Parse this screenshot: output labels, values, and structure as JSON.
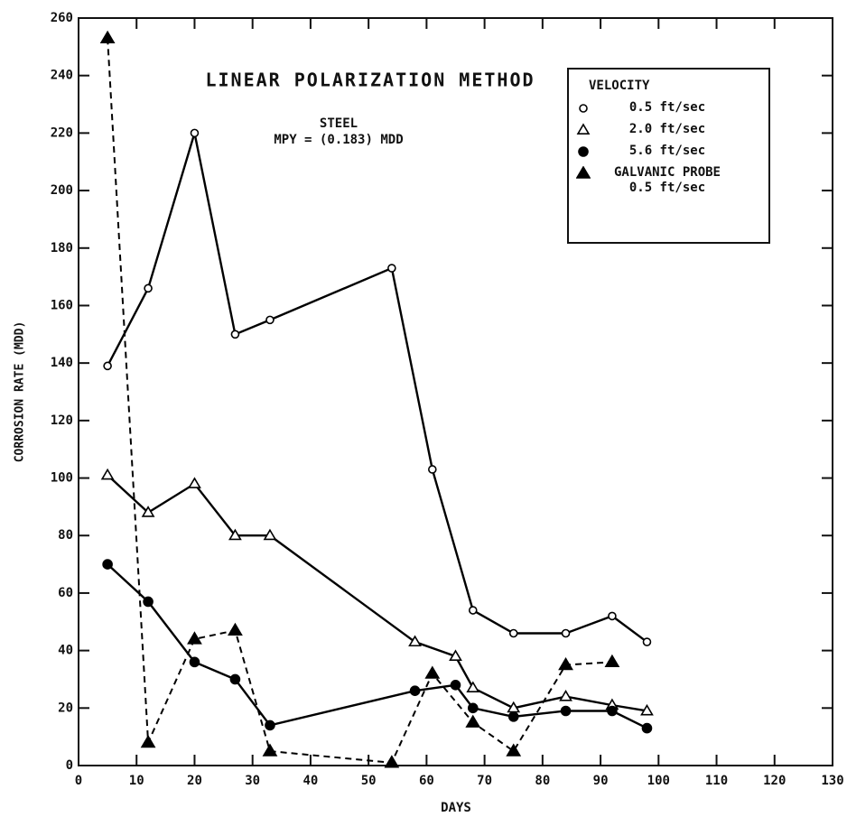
{
  "chart_data": {
    "type": "line",
    "annotations": [
      "LINEAR POLARIZATION METHOD",
      "STEEL",
      "MPY = (0.183) MDD"
    ],
    "xlabel": "DAYS",
    "ylabel": "CORROSION RATE (MDD)",
    "legend_title": "VELOCITY",
    "legend": "upper right",
    "xlim": [
      0,
      130
    ],
    "xticks": [
      0,
      10,
      20,
      30,
      40,
      50,
      60,
      70,
      80,
      90,
      100,
      110,
      120,
      130
    ],
    "ylim": [
      0,
      260
    ],
    "yticks": [
      0,
      20,
      40,
      60,
      80,
      100,
      120,
      140,
      160,
      180,
      200,
      220,
      240,
      260
    ],
    "grid": false,
    "series": [
      {
        "name": "0.5 ft/sec",
        "color": "#000000",
        "marker": "circle-open",
        "dash": false,
        "x": [
          5,
          12,
          20,
          27,
          33,
          54,
          61,
          68,
          75,
          84,
          92,
          98
        ],
        "values": [
          139,
          166,
          220,
          150,
          155,
          173,
          103,
          54,
          46,
          46,
          52,
          43
        ]
      },
      {
        "name": "2.0 ft/sec",
        "color": "#000000",
        "marker": "triangle-open",
        "dash": false,
        "x": [
          5,
          12,
          20,
          27,
          33,
          58,
          65,
          68,
          75,
          84,
          92,
          98
        ],
        "values": [
          101,
          88,
          98,
          80,
          80,
          43,
          38,
          27,
          20,
          24,
          21,
          19
        ]
      },
      {
        "name": "5.6 ft/sec",
        "color": "#000000",
        "marker": "circle",
        "dash": false,
        "x": [
          5,
          12,
          20,
          27,
          33,
          58,
          65,
          68,
          75,
          84,
          92,
          98
        ],
        "values": [
          70,
          57,
          36,
          30,
          14,
          26,
          28,
          20,
          17,
          19,
          19,
          13
        ]
      },
      {
        "name": "GALVANIC PROBE 0.5 ft/sec",
        "color": "#000000",
        "marker": "triangle",
        "dash": true,
        "x": [
          5,
          12,
          20,
          27,
          33,
          54,
          61,
          68,
          75,
          84,
          92
        ],
        "values": [
          253,
          8,
          44,
          47,
          5,
          1,
          32,
          15,
          5,
          35,
          36
        ]
      }
    ]
  }
}
